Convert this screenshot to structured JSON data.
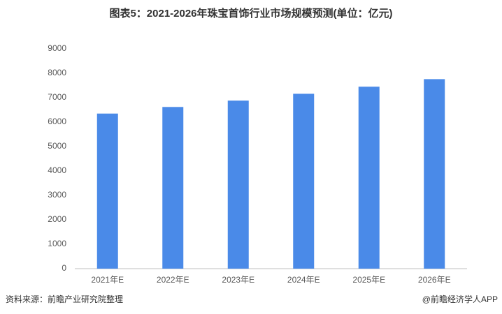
{
  "chart_data": {
    "type": "bar",
    "title": "图表5：2021-2026年珠宝首饰行业市场规模预测(单位：亿元)",
    "categories": [
      "2021年E",
      "2022年E",
      "2023年E",
      "2024年E",
      "2025年E",
      "2026年E"
    ],
    "values": [
      6350,
      6620,
      6880,
      7160,
      7450,
      7760
    ],
    "color": "#4a8ae8",
    "ylim": [
      0,
      9000
    ],
    "yticks": [
      0,
      1000,
      2000,
      3000,
      4000,
      5000,
      6000,
      7000,
      8000,
      9000
    ],
    "grid": false
  },
  "footer": {
    "source": "资料来源：前瞻产业研究院整理",
    "brand": "@前瞻经济学人APP"
  }
}
